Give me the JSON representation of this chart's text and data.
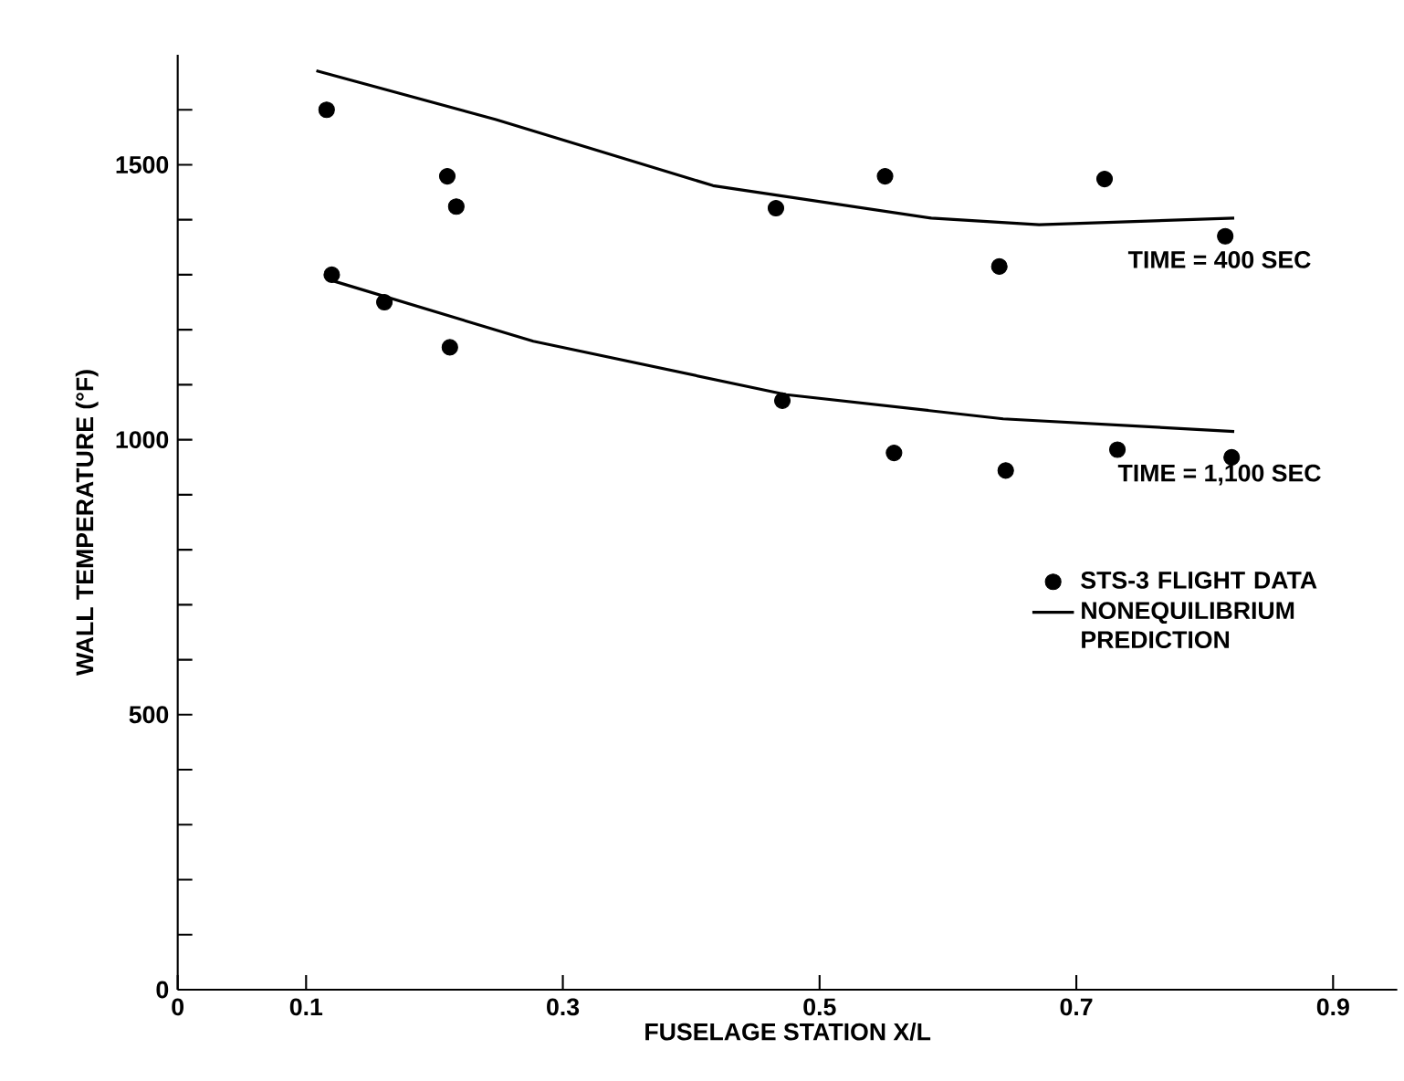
{
  "chart_data": {
    "type": "scatter",
    "xlabel": "FUSELAGE STATION X/L",
    "ylabel": "WALL TEMPERATURE (°F)",
    "xlim": [
      0,
      0.95
    ],
    "xticks": [
      0,
      0.1,
      0.3,
      0.5,
      0.7,
      0.9
    ],
    "ylim": [
      0,
      1700
    ],
    "yticks": [
      0,
      {
        "value": 100,
        "label": null
      },
      {
        "value": 200,
        "label": null
      },
      {
        "value": 300,
        "label": null
      },
      {
        "value": 400,
        "label": null
      },
      500,
      {
        "value": 600,
        "label": null
      },
      {
        "value": 700,
        "label": null
      },
      {
        "value": 800,
        "label": null
      },
      {
        "value": 900,
        "label": null
      },
      1000,
      {
        "value": 1100,
        "label": null
      },
      {
        "value": 1200,
        "label": null
      },
      {
        "value": 1300,
        "label": null
      },
      {
        "value": 1400,
        "label": null
      },
      1500,
      {
        "value": 1600,
        "label": null
      }
    ],
    "grid": false,
    "legend": "right",
    "marker": "circle",
    "series": [
      {
        "name": "STS-3 FLIGHT DATA",
        "color": "#000000",
        "x": [
          0.116,
          0.21,
          0.217,
          0.466,
          0.551,
          0.64,
          0.722,
          0.816
        ],
        "values": [
          1600,
          1479,
          1424,
          1421,
          1479,
          1315,
          1474,
          1370
        ]
      },
      {
        "color": "#000000",
        "x": [
          0.12,
          0.161,
          0.212,
          0.471,
          0.558,
          0.645,
          0.732,
          0.821
        ],
        "values": [
          1300,
          1250,
          1168,
          1071,
          976,
          944,
          982,
          968
        ]
      },
      {
        "name": "NONEQUILIBRIUM PREDICTION",
        "type": "line",
        "marker": "none",
        "line_style": "solid",
        "color": "#000000",
        "x": [
          0.108,
          0.248,
          0.417,
          0.587,
          0.671,
          0.823
        ],
        "values": [
          1671,
          1582,
          1462,
          1403,
          1391,
          1403
        ]
      },
      {
        "type": "line",
        "marker": "none",
        "line_style": "solid",
        "color": "#000000",
        "x": [
          0.118,
          0.277,
          0.474,
          0.643,
          0.823
        ],
        "values": [
          1291,
          1179,
          1082,
          1038,
          1015
        ]
      }
    ],
    "annotations": [
      {
        "text": "TIME = 400 SEC",
        "x": 0.823,
        "y": 1403
      },
      {
        "text": "TIME = 1,100 SEC",
        "x": 0.823,
        "y": 1015
      }
    ]
  }
}
